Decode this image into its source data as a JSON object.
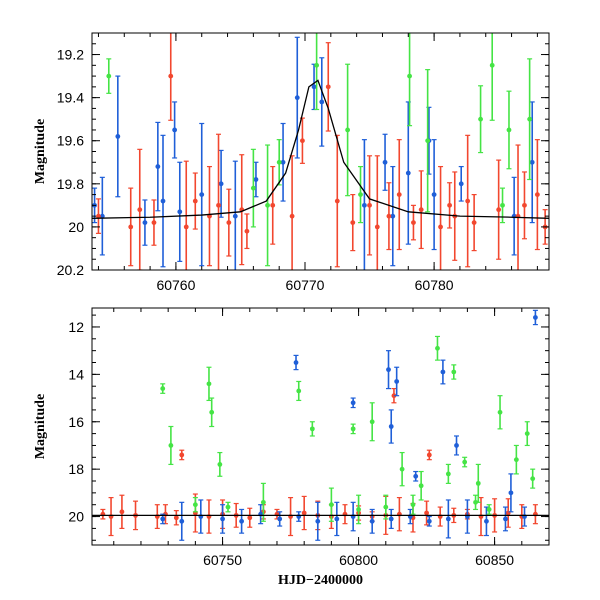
{
  "colors": {
    "blue": "#1f5fd8",
    "green": "#45e445",
    "red": "#f2472f",
    "model": "#000000"
  },
  "chart_data": [
    {
      "type": "scatter",
      "title": "",
      "xlabel": "",
      "ylabel": "Magnitude",
      "xlim": [
        60753.5,
        60788.9
      ],
      "ylim": [
        20.2,
        19.1
      ],
      "y_inverted": true,
      "xticks": [
        "60760",
        "60770",
        "60780"
      ],
      "yticks": [
        "19.2",
        "19.4",
        "19.6",
        "19.8",
        "20",
        "20.2"
      ],
      "error_bars": true,
      "model_curve": {
        "x": [
          60753.5,
          60758,
          60762,
          60765,
          60767,
          60768.5,
          60769.5,
          60770.3,
          60771,
          60771.8,
          60773,
          60775,
          60778,
          60782,
          60786,
          60788.9
        ],
        "y": [
          19.96,
          19.955,
          19.945,
          19.93,
          19.88,
          19.75,
          19.55,
          19.35,
          19.32,
          19.45,
          19.7,
          19.87,
          19.93,
          19.95,
          19.955,
          19.96
        ]
      },
      "series": [
        {
          "name": "",
          "color": "blue",
          "x": [
            60753.7,
            60754.3,
            60755.5,
            60757.6,
            60758.6,
            60759.0,
            60759.9,
            60760.3,
            60762.0,
            60763.5,
            60764.6,
            60766.2,
            60768.3,
            60769.4,
            60770.7,
            60771.3,
            60774.6,
            60776.2,
            60776.8,
            60778.0,
            60779.6,
            60780.0,
            60782.1,
            60786.2,
            60787.6
          ],
          "y": [
            19.9,
            19.95,
            19.58,
            19.98,
            19.72,
            19.88,
            19.55,
            19.93,
            19.85,
            19.8,
            19.95,
            19.78,
            19.7,
            19.4,
            19.35,
            19.42,
            19.9,
            19.7,
            19.95,
            19.75,
            19.6,
            19.85,
            19.8,
            19.95,
            19.7
          ]
        },
        {
          "name": "",
          "color": "green",
          "x": [
            60754.8,
            60766.0,
            60767.1,
            60768.0,
            60770.9,
            60773.3,
            60774.3,
            60778.1,
            60779.5,
            60783.6,
            60784.5,
            60785.3,
            60785.8,
            60787.4
          ],
          "y": [
            19.3,
            19.82,
            19.9,
            19.7,
            19.25,
            19.55,
            19.85,
            19.3,
            19.6,
            19.5,
            19.25,
            19.9,
            19.55,
            19.5
          ]
        },
        {
          "name": "",
          "color": "red",
          "x": [
            60754.0,
            60756.5,
            60757.2,
            60758.3,
            60759.6,
            60760.8,
            60761.5,
            60762.6,
            60763.3,
            60764.1,
            60765.1,
            60765.5,
            60767.5,
            60769.0,
            60769.8,
            60771.8,
            60772.5,
            60773.7,
            60775.0,
            60775.6,
            60776.5,
            60777.3,
            60778.4,
            60779.0,
            60780.5,
            60781.2,
            60781.6,
            60782.6,
            60783.1,
            60785.0,
            60786.5,
            60787.0,
            60788.0,
            60788.6
          ],
          "y": [
            19.95,
            20.0,
            19.92,
            19.98,
            19.3,
            20.0,
            19.88,
            19.95,
            19.9,
            19.98,
            19.92,
            20.02,
            19.9,
            19.95,
            19.6,
            19.35,
            19.88,
            19.98,
            19.9,
            20.0,
            19.95,
            19.85,
            19.98,
            19.92,
            20.0,
            19.9,
            19.95,
            19.88,
            19.98,
            19.92,
            19.95,
            19.9,
            19.85,
            20.0
          ]
        }
      ]
    },
    {
      "type": "scatter",
      "title": "",
      "xlabel": "HJD−2400000",
      "ylabel": "Magnitude",
      "xlim": [
        60702,
        60870
      ],
      "ylim": [
        21.2,
        11.2
      ],
      "y_inverted": true,
      "xticks": [
        "60750",
        "60800",
        "60850"
      ],
      "yticks": [
        "12",
        "14",
        "16",
        "18",
        "20"
      ],
      "error_bars": true,
      "baseline": 19.95,
      "series": [
        {
          "name": "",
          "color": "red",
          "x": [
            60706,
            60709,
            60713,
            60718,
            60726,
            60729,
            60733,
            60735,
            60740,
            60745,
            60750,
            60755,
            60760,
            60765,
            60770,
            60775,
            60780,
            60785,
            60790,
            60795,
            60800,
            60805,
            60810,
            60815,
            60820,
            60825,
            60830,
            60835,
            60840,
            60845,
            60850,
            60855,
            60860,
            60865,
            60813,
            60826
          ],
          "y": [
            19.9,
            20.0,
            19.8,
            19.95,
            20.0,
            19.9,
            20.05,
            17.4,
            19.85,
            20.0,
            19.9,
            19.95,
            20.05,
            19.8,
            19.9,
            20.0,
            19.85,
            19.95,
            20.0,
            19.9,
            19.85,
            20.0,
            19.95,
            19.9,
            20.05,
            19.85,
            20.0,
            19.95,
            19.9,
            20.0,
            19.95,
            19.85,
            20.0,
            19.9,
            14.9,
            17.4
          ]
        },
        {
          "name": "",
          "color": "blue",
          "x": [
            60728,
            60735,
            60742,
            60750,
            60757,
            60764,
            60771,
            60778,
            60785,
            60792,
            60798,
            60805,
            60812,
            60819,
            60826,
            60833,
            60840,
            60847,
            60854,
            60861,
            60777,
            60798,
            60811,
            60812,
            60814,
            60831,
            60836,
            60865,
            60821,
            60856
          ],
          "y": [
            20.1,
            20.2,
            20.0,
            20.1,
            20.2,
            19.9,
            20.1,
            20.0,
            20.2,
            20.1,
            20.0,
            20.2,
            20.1,
            20.0,
            20.2,
            20.1,
            20.0,
            20.2,
            20.1,
            20.0,
            13.5,
            15.2,
            13.8,
            16.2,
            14.3,
            13.9,
            17.0,
            11.6,
            18.3,
            19.0
          ]
        },
        {
          "name": "",
          "color": "green",
          "x": [
            60728,
            60731,
            60745,
            60746,
            60749,
            60778,
            60783,
            60798,
            60805,
            60816,
            60823,
            60829,
            60833,
            60835,
            60839,
            60844,
            60852,
            60858,
            60862,
            60864,
            60740,
            60752,
            60765,
            60790,
            60800,
            60810,
            60820,
            60843,
            60848
          ],
          "y": [
            14.6,
            17.0,
            14.4,
            15.6,
            17.8,
            14.7,
            16.3,
            16.3,
            16.0,
            18.0,
            18.7,
            12.9,
            18.2,
            13.9,
            17.7,
            18.6,
            15.6,
            17.6,
            16.5,
            18.4,
            19.5,
            19.6,
            19.4,
            19.5,
            19.7,
            19.6,
            19.5,
            19.4,
            19.7
          ]
        }
      ]
    }
  ]
}
